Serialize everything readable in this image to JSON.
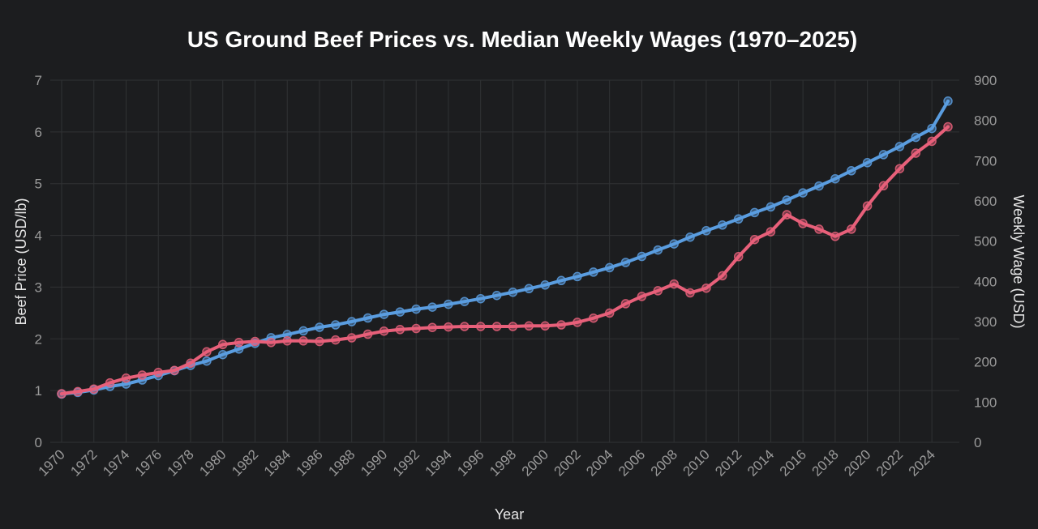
{
  "chart_data": {
    "type": "line",
    "title": "US Ground Beef Prices vs. Median Weekly Wages (1970–2025)",
    "xlabel": "Year",
    "ylabel_left": "Beef Price (USD/lb)",
    "ylabel_right": "Weekly Wage (USD)",
    "grid": true,
    "legend": "none",
    "x": [
      1970,
      1971,
      1972,
      1973,
      1974,
      1975,
      1976,
      1977,
      1978,
      1979,
      1980,
      1981,
      1982,
      1983,
      1984,
      1985,
      1986,
      1987,
      1988,
      1989,
      1990,
      1991,
      1992,
      1993,
      1994,
      1995,
      1996,
      1997,
      1998,
      1999,
      2000,
      2001,
      2002,
      2003,
      2004,
      2005,
      2006,
      2007,
      2008,
      2009,
      2010,
      2011,
      2012,
      2013,
      2014,
      2015,
      2016,
      2017,
      2018,
      2019,
      2020,
      2021,
      2022,
      2023,
      2024,
      2025
    ],
    "x_ticks": [
      "1970",
      "1972",
      "1974",
      "1976",
      "1978",
      "1980",
      "1982",
      "1984",
      "1986",
      "1988",
      "1990",
      "1992",
      "1994",
      "1996",
      "1998",
      "2000",
      "2002",
      "2004",
      "2006",
      "2008",
      "2010",
      "2012",
      "2014",
      "2016",
      "2018",
      "2020",
      "2022",
      "2024"
    ],
    "y_left": {
      "range": [
        0,
        7
      ],
      "ticks": [
        "0",
        "1",
        "2",
        "3",
        "4",
        "5",
        "6",
        "7"
      ]
    },
    "y_right": {
      "range": [
        0,
        900
      ],
      "ticks": [
        "0",
        "100",
        "200",
        "300",
        "400",
        "500",
        "600",
        "700",
        "800",
        "900"
      ]
    },
    "series": [
      {
        "axis": "left",
        "color": "#e8607a",
        "values": [
          0.94,
          0.98,
          1.03,
          1.15,
          1.24,
          1.3,
          1.35,
          1.39,
          1.53,
          1.75,
          1.89,
          1.93,
          1.95,
          1.93,
          1.96,
          1.96,
          1.95,
          1.98,
          2.02,
          2.09,
          2.15,
          2.18,
          2.2,
          2.22,
          2.23,
          2.24,
          2.24,
          2.24,
          2.24,
          2.25,
          2.25,
          2.27,
          2.32,
          2.4,
          2.5,
          2.68,
          2.82,
          2.93,
          3.06,
          2.89,
          2.98,
          3.22,
          3.59,
          3.92,
          4.07,
          4.4,
          4.23,
          4.12,
          3.98,
          4.12,
          4.57,
          4.96,
          5.29,
          5.59,
          5.82,
          6.1
        ]
      },
      {
        "axis": "right",
        "color": "#5a9de0",
        "values": [
          120,
          124,
          130,
          139,
          145,
          155,
          166,
          178,
          191,
          202,
          218,
          232,
          246,
          260,
          268,
          277,
          286,
          292,
          300,
          309,
          318,
          324,
          331,
          336,
          343,
          350,
          357,
          365,
          373,
          382,
          391,
          402,
          412,
          423,
          434,
          447,
          462,
          478,
          493,
          510,
          526,
          540,
          555,
          571,
          585,
          602,
          620,
          637,
          655,
          675,
          695,
          715,
          735,
          758,
          780,
          848
        ]
      }
    ]
  }
}
